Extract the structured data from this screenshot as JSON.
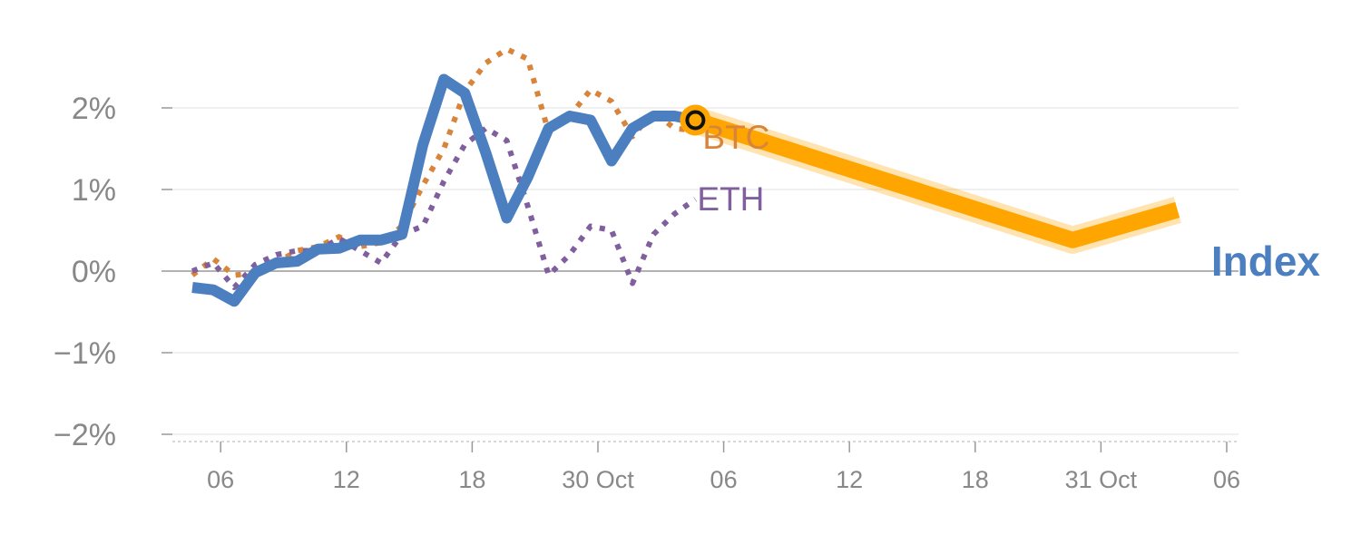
{
  "chart_data": {
    "type": "line",
    "title": "",
    "xlabel": "",
    "ylabel": "",
    "ylim": [
      -2.1,
      2.6
    ],
    "y_ticks": [
      {
        "value": 2,
        "label": "2%"
      },
      {
        "value": 1,
        "label": "1%"
      },
      {
        "value": 0,
        "label": "0%"
      },
      {
        "value": -1,
        "label": "−1%"
      },
      {
        "value": -2,
        "label": "−2%"
      }
    ],
    "x_ticks": [
      {
        "x": 1.35,
        "label": "06"
      },
      {
        "x": 7.35,
        "label": "12"
      },
      {
        "x": 13.35,
        "label": "18"
      },
      {
        "x": 19.35,
        "label": "30 Oct"
      },
      {
        "x": 25.35,
        "label": "06"
      },
      {
        "x": 31.35,
        "label": "12"
      },
      {
        "x": 37.35,
        "label": "18"
      },
      {
        "x": 43.35,
        "label": "31 Oct"
      },
      {
        "x": 49.35,
        "label": "06"
      }
    ],
    "grid": true,
    "series": [
      {
        "name": "BTC",
        "color": "#d9843b",
        "style": "dotted",
        "values": [
          [
            0,
            -0.05
          ],
          [
            1,
            0.15
          ],
          [
            2,
            -0.05
          ],
          [
            3,
            -0.02
          ],
          [
            4,
            0.1
          ],
          [
            5,
            0.25
          ],
          [
            6,
            0.3
          ],
          [
            7,
            0.42
          ],
          [
            8,
            0.3
          ],
          [
            9,
            0.35
          ],
          [
            10,
            0.55
          ],
          [
            11,
            1.05
          ],
          [
            12,
            1.5
          ],
          [
            13,
            2.2
          ],
          [
            14,
            2.55
          ],
          [
            15,
            2.72
          ],
          [
            16,
            2.6
          ],
          [
            17,
            1.7
          ],
          [
            18,
            1.9
          ],
          [
            19,
            2.22
          ],
          [
            20,
            2.08
          ],
          [
            21,
            1.65
          ],
          [
            22,
            1.95
          ],
          [
            23,
            1.75
          ],
          [
            24,
            1.72
          ]
        ]
      },
      {
        "name": "ETH",
        "color": "#7f5f9e",
        "style": "dotted",
        "values": [
          [
            0,
            0.0
          ],
          [
            1,
            0.1
          ],
          [
            2,
            -0.2
          ],
          [
            3,
            0.08
          ],
          [
            4,
            0.2
          ],
          [
            5,
            0.25
          ],
          [
            6,
            0.25
          ],
          [
            7,
            0.4
          ],
          [
            8,
            0.25
          ],
          [
            9,
            0.1
          ],
          [
            10,
            0.45
          ],
          [
            11,
            0.55
          ],
          [
            12,
            1.1
          ],
          [
            13,
            1.55
          ],
          [
            14,
            1.75
          ],
          [
            15,
            1.6
          ],
          [
            16,
            0.8
          ],
          [
            17,
            -0.05
          ],
          [
            18,
            0.2
          ],
          [
            19,
            0.55
          ],
          [
            20,
            0.5
          ],
          [
            21,
            -0.15
          ],
          [
            22,
            0.45
          ],
          [
            23,
            0.7
          ],
          [
            24,
            0.88
          ]
        ]
      },
      {
        "name": "Index",
        "color": "#4c7fc0",
        "style": "solid",
        "values": [
          [
            0,
            -0.2
          ],
          [
            1,
            -0.23
          ],
          [
            2,
            -0.37
          ],
          [
            3,
            -0.02
          ],
          [
            4,
            0.1
          ],
          [
            5,
            0.12
          ],
          [
            6,
            0.27
          ],
          [
            7,
            0.28
          ],
          [
            8,
            0.38
          ],
          [
            9,
            0.38
          ],
          [
            10,
            0.45
          ],
          [
            11,
            1.55
          ],
          [
            12,
            2.35
          ],
          [
            13,
            2.18
          ],
          [
            14,
            1.45
          ],
          [
            15,
            0.65
          ],
          [
            16,
            1.15
          ],
          [
            17,
            1.75
          ],
          [
            18,
            1.9
          ],
          [
            19,
            1.85
          ],
          [
            20,
            1.35
          ],
          [
            21,
            1.75
          ],
          [
            22,
            1.9
          ],
          [
            23,
            1.9
          ],
          [
            24,
            1.85
          ]
        ]
      },
      {
        "name": "Index projection",
        "color": "#ffa500",
        "style": "highlight",
        "values": [
          [
            24,
            1.85
          ],
          [
            42,
            0.38
          ],
          [
            47,
            0.75
          ]
        ]
      }
    ],
    "labels": {
      "btc": "BTC",
      "eth": "ETH",
      "index": "Index"
    },
    "colors": {
      "index": "#4c7fc0",
      "btc": "#d9843b",
      "eth": "#7f5f9e",
      "highlight": "#ffa500",
      "grid": "#e6e6e6",
      "zero_line": "#999999",
      "tick_text": "#888888"
    }
  }
}
